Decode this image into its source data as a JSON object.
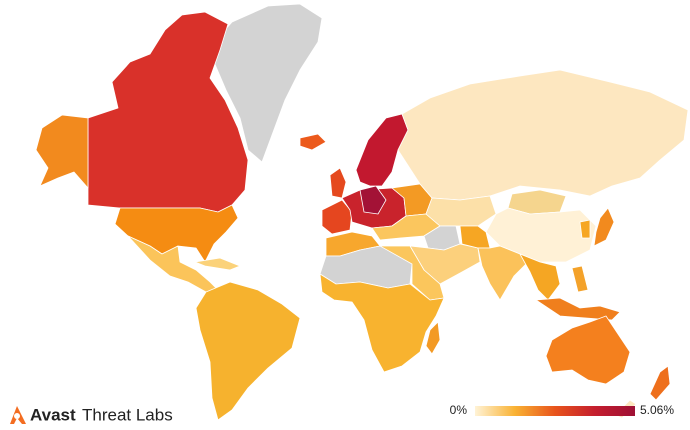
{
  "brand": {
    "name": "Avast",
    "product": "Threat Labs"
  },
  "legend": {
    "ticks": [
      {
        "value": 0,
        "label": "0%"
      },
      {
        "value": 5.06,
        "label": "5.06%"
      }
    ],
    "colors": [
      "#fff3d6",
      "#f9b233",
      "#e8541c",
      "#c41e2e",
      "#9e1035"
    ]
  }
}
